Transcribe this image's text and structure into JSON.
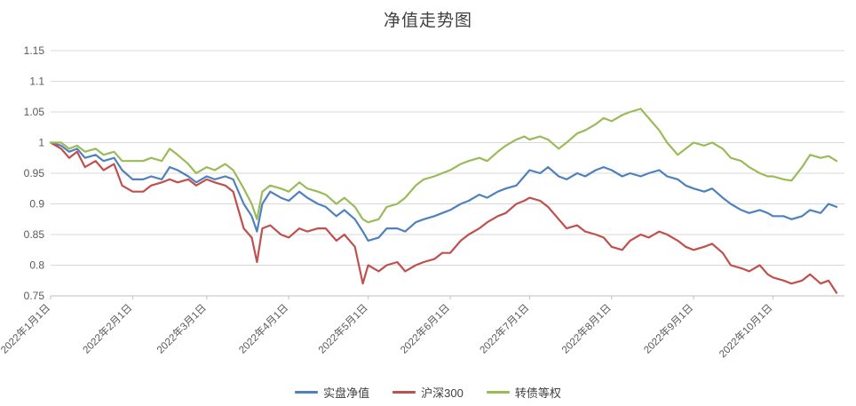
{
  "chart_data": {
    "type": "line",
    "title": "净值走势图",
    "xlabel": "",
    "ylabel": "",
    "ylim": [
      0.75,
      1.15
    ],
    "y_tick_step": 0.05,
    "xlim": [
      0,
      300
    ],
    "grid": "horizontal",
    "legend_position": "bottom",
    "style": {
      "grid_color": "#d9d9d9",
      "axis_color": "#bfbfbf",
      "text_color": "#595959",
      "title_color": "#404040"
    },
    "x_ticks": {
      "positions": [
        0,
        31,
        59,
        90,
        120,
        151,
        181,
        212,
        243,
        273
      ],
      "labels": [
        "2022年1月1日",
        "2022年2月1日",
        "2022年3月1日",
        "2022年4月1日",
        "2022年5月1日",
        "2022年6月1日",
        "2022年7月1日",
        "2022年8月1日",
        "2022年9月1日",
        "2022年10月1日"
      ]
    },
    "x": [
      0,
      4,
      7,
      10,
      13,
      17,
      20,
      24,
      27,
      31,
      35,
      38,
      42,
      45,
      48,
      52,
      55,
      59,
      62,
      66,
      69,
      73,
      76,
      78,
      80,
      83,
      87,
      90,
      94,
      97,
      101,
      104,
      108,
      111,
      115,
      118,
      120,
      124,
      127,
      131,
      134,
      138,
      141,
      145,
      148,
      151,
      155,
      158,
      162,
      165,
      169,
      172,
      176,
      179,
      181,
      185,
      188,
      192,
      195,
      199,
      202,
      206,
      209,
      212,
      216,
      219,
      223,
      226,
      230,
      233,
      237,
      240,
      243,
      247,
      250,
      254,
      257,
      261,
      264,
      268,
      271,
      273,
      277,
      280,
      284,
      287,
      291,
      294,
      297
    ],
    "series": [
      {
        "name": "实盘净值",
        "color": "#4F81BD",
        "values": [
          1.0,
          0.995,
          0.985,
          0.99,
          0.975,
          0.98,
          0.97,
          0.975,
          0.955,
          0.94,
          0.94,
          0.945,
          0.94,
          0.96,
          0.955,
          0.945,
          0.935,
          0.945,
          0.94,
          0.945,
          0.94,
          0.9,
          0.88,
          0.855,
          0.9,
          0.92,
          0.91,
          0.905,
          0.92,
          0.91,
          0.9,
          0.895,
          0.88,
          0.89,
          0.875,
          0.855,
          0.84,
          0.845,
          0.86,
          0.86,
          0.855,
          0.87,
          0.875,
          0.88,
          0.885,
          0.89,
          0.9,
          0.905,
          0.915,
          0.91,
          0.92,
          0.925,
          0.93,
          0.945,
          0.955,
          0.95,
          0.96,
          0.945,
          0.94,
          0.95,
          0.945,
          0.955,
          0.96,
          0.955,
          0.945,
          0.95,
          0.945,
          0.95,
          0.955,
          0.945,
          0.94,
          0.93,
          0.925,
          0.92,
          0.925,
          0.91,
          0.9,
          0.89,
          0.885,
          0.89,
          0.885,
          0.88,
          0.88,
          0.875,
          0.88,
          0.89,
          0.885,
          0.9,
          0.895
        ]
      },
      {
        "name": "沪深300",
        "color": "#C0504D",
        "values": [
          1.0,
          0.99,
          0.975,
          0.985,
          0.96,
          0.97,
          0.955,
          0.965,
          0.93,
          0.92,
          0.92,
          0.93,
          0.935,
          0.94,
          0.935,
          0.94,
          0.93,
          0.94,
          0.935,
          0.93,
          0.92,
          0.86,
          0.845,
          0.805,
          0.86,
          0.865,
          0.85,
          0.845,
          0.86,
          0.855,
          0.86,
          0.86,
          0.84,
          0.85,
          0.83,
          0.77,
          0.8,
          0.79,
          0.8,
          0.805,
          0.79,
          0.8,
          0.805,
          0.81,
          0.82,
          0.82,
          0.84,
          0.85,
          0.86,
          0.87,
          0.88,
          0.885,
          0.9,
          0.905,
          0.91,
          0.905,
          0.895,
          0.875,
          0.86,
          0.865,
          0.855,
          0.85,
          0.845,
          0.83,
          0.825,
          0.84,
          0.85,
          0.845,
          0.855,
          0.85,
          0.84,
          0.83,
          0.825,
          0.83,
          0.835,
          0.82,
          0.8,
          0.795,
          0.79,
          0.8,
          0.785,
          0.78,
          0.775,
          0.77,
          0.775,
          0.785,
          0.77,
          0.775,
          0.755
        ]
      },
      {
        "name": "转债等权",
        "color": "#9BBB59",
        "values": [
          1.0,
          1.0,
          0.99,
          0.995,
          0.985,
          0.99,
          0.98,
          0.985,
          0.97,
          0.97,
          0.97,
          0.975,
          0.97,
          0.99,
          0.98,
          0.965,
          0.95,
          0.96,
          0.955,
          0.965,
          0.955,
          0.925,
          0.9,
          0.875,
          0.92,
          0.93,
          0.925,
          0.92,
          0.935,
          0.925,
          0.92,
          0.915,
          0.9,
          0.91,
          0.895,
          0.875,
          0.87,
          0.875,
          0.895,
          0.9,
          0.91,
          0.93,
          0.94,
          0.945,
          0.95,
          0.955,
          0.965,
          0.97,
          0.975,
          0.97,
          0.985,
          0.995,
          1.005,
          1.01,
          1.005,
          1.01,
          1.005,
          0.99,
          1.0,
          1.015,
          1.02,
          1.03,
          1.04,
          1.035,
          1.045,
          1.05,
          1.055,
          1.04,
          1.02,
          1.0,
          0.98,
          0.99,
          1.0,
          0.995,
          1.0,
          0.99,
          0.975,
          0.97,
          0.96,
          0.95,
          0.945,
          0.945,
          0.94,
          0.938,
          0.96,
          0.98,
          0.975,
          0.978,
          0.97
        ]
      }
    ]
  }
}
